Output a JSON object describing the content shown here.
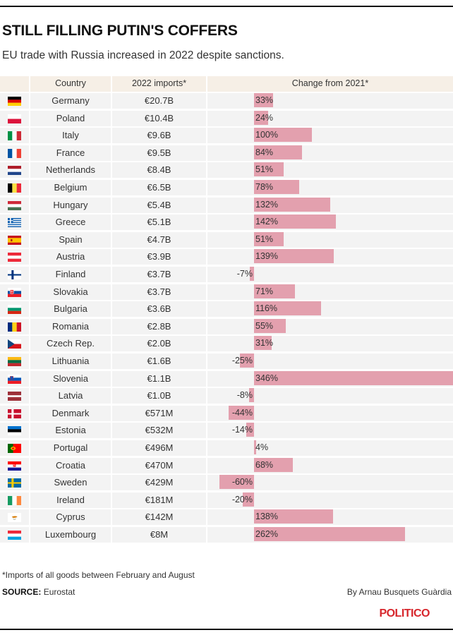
{
  "title": "STILL FILLING PUTIN'S COFFERS",
  "subtitle": "EU trade with Russia increased in 2022 despite sanctions.",
  "headers": {
    "country": "Country",
    "imports": "2022 imports*",
    "change": "Change from 2021*"
  },
  "colors": {
    "bar": "#e3a0ae",
    "header_bg": "#f6efe6",
    "row_bg": "#f3f3f3",
    "logo": "#d7262c"
  },
  "chart_data": {
    "type": "table",
    "columns": [
      "Country",
      "2022 imports*",
      "Change from 2021*"
    ],
    "rows": [
      {
        "country": "Germany",
        "imports": "€20.7B",
        "change": 33,
        "change_label": "33%",
        "flag": "germany-flag"
      },
      {
        "country": "Poland",
        "imports": "€10.4B",
        "change": 24,
        "change_label": "24%",
        "flag": "poland-flag"
      },
      {
        "country": "Italy",
        "imports": "€9.6B",
        "change": 100,
        "change_label": "100%",
        "flag": "italy-flag"
      },
      {
        "country": "France",
        "imports": "€9.5B",
        "change": 84,
        "change_label": "84%",
        "flag": "france-flag"
      },
      {
        "country": "Netherlands",
        "imports": "€8.4B",
        "change": 51,
        "change_label": "51%",
        "flag": "netherlands-flag"
      },
      {
        "country": "Belgium",
        "imports": "€6.5B",
        "change": 78,
        "change_label": "78%",
        "flag": "belgium-flag"
      },
      {
        "country": "Hungary",
        "imports": "€5.4B",
        "change": 132,
        "change_label": "132%",
        "flag": "hungary-flag"
      },
      {
        "country": "Greece",
        "imports": "€5.1B",
        "change": 142,
        "change_label": "142%",
        "flag": "greece-flag"
      },
      {
        "country": "Spain",
        "imports": "€4.7B",
        "change": 51,
        "change_label": "51%",
        "flag": "spain-flag"
      },
      {
        "country": "Austria",
        "imports": "€3.9B",
        "change": 139,
        "change_label": "139%",
        "flag": "austria-flag"
      },
      {
        "country": "Finland",
        "imports": "€3.7B",
        "change": -7,
        "change_label": "-7%",
        "flag": "finland-flag"
      },
      {
        "country": "Slovakia",
        "imports": "€3.7B",
        "change": 71,
        "change_label": "71%",
        "flag": "slovakia-flag"
      },
      {
        "country": "Bulgaria",
        "imports": "€3.6B",
        "change": 116,
        "change_label": "116%",
        "flag": "bulgaria-flag"
      },
      {
        "country": "Romania",
        "imports": "€2.8B",
        "change": 55,
        "change_label": "55%",
        "flag": "romania-flag"
      },
      {
        "country": "Czech Rep.",
        "imports": "€2.0B",
        "change": 31,
        "change_label": "31%",
        "flag": "czech-flag"
      },
      {
        "country": "Lithuania",
        "imports": "€1.6B",
        "change": -25,
        "change_label": "-25%",
        "flag": "lithuania-flag"
      },
      {
        "country": "Slovenia",
        "imports": "€1.1B",
        "change": 346,
        "change_label": "346%",
        "flag": "slovenia-flag"
      },
      {
        "country": "Latvia",
        "imports": "€1.0B",
        "change": -8,
        "change_label": "-8%",
        "flag": "latvia-flag"
      },
      {
        "country": "Denmark",
        "imports": "€571M",
        "change": -44,
        "change_label": "-44%",
        "flag": "denmark-flag"
      },
      {
        "country": "Estonia",
        "imports": "€532M",
        "change": -14,
        "change_label": "-14%",
        "flag": "estonia-flag"
      },
      {
        "country": "Portugal",
        "imports": "€496M",
        "change": 4,
        "change_label": "4%",
        "flag": "portugal-flag"
      },
      {
        "country": "Croatia",
        "imports": "€470M",
        "change": 68,
        "change_label": "68%",
        "flag": "croatia-flag"
      },
      {
        "country": "Sweden",
        "imports": "€429M",
        "change": -60,
        "change_label": "-60%",
        "flag": "sweden-flag"
      },
      {
        "country": "Ireland",
        "imports": "€181M",
        "change": -20,
        "change_label": "-20%",
        "flag": "ireland-flag"
      },
      {
        "country": "Cyprus",
        "imports": "€142M",
        "change": 138,
        "change_label": "138%",
        "flag": "cyprus-flag"
      },
      {
        "country": "Luxembourg",
        "imports": "€8M",
        "change": 262,
        "change_label": "262%",
        "flag": "luxembourg-flag"
      }
    ]
  },
  "footnote": "*Imports of all goods between February and August",
  "source_label": "SOURCE:",
  "source_value": "Eurostat",
  "byline": "By Arnau Busquets Guàrdia",
  "logo": "POLITICO"
}
